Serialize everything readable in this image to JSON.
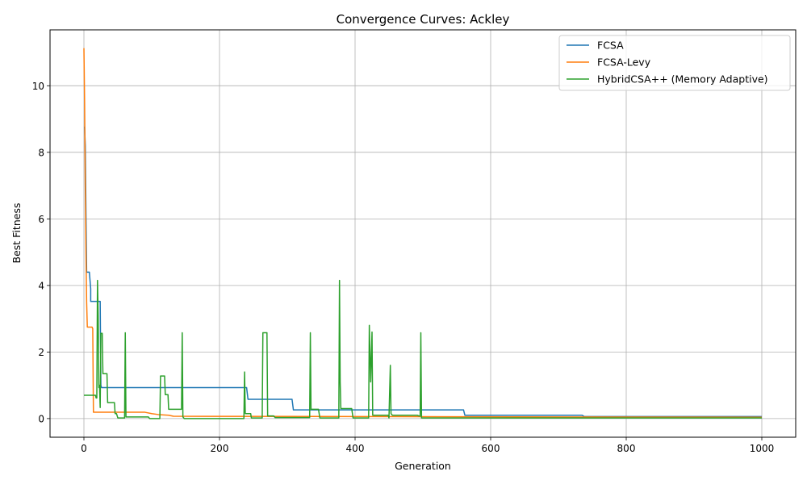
{
  "chart_data": {
    "type": "line",
    "title": "Convergence Curves: Ackley",
    "xlabel": "Generation",
    "ylabel": "Best Fitness",
    "xlim": [
      -50,
      1050
    ],
    "ylim": [
      -0.56,
      11.68
    ],
    "xticks": [
      0,
      200,
      400,
      600,
      800,
      1000
    ],
    "yticks": [
      0,
      2,
      4,
      6,
      8,
      10
    ],
    "grid": true,
    "legend_position": "top-right",
    "series": [
      {
        "name": "FCSA",
        "color": "#1f77b4",
        "points": [
          [
            0,
            8.75
          ],
          [
            1,
            8.75
          ],
          [
            2,
            8.2
          ],
          [
            3,
            6.2
          ],
          [
            4,
            4.4
          ],
          [
            8,
            4.4
          ],
          [
            10,
            3.9
          ],
          [
            10,
            3.52
          ],
          [
            23,
            3.52
          ],
          [
            24,
            3.52
          ],
          [
            25,
            1.0
          ],
          [
            26,
            0.93
          ],
          [
            240,
            0.93
          ],
          [
            242,
            0.58
          ],
          [
            307,
            0.58
          ],
          [
            309,
            0.26
          ],
          [
            560,
            0.26
          ],
          [
            562,
            0.1
          ],
          [
            735,
            0.1
          ],
          [
            738,
            0.06
          ],
          [
            1000,
            0.06
          ]
        ]
      },
      {
        "name": "FCSA-Levy",
        "color": "#ff7f0e",
        "points": [
          [
            0,
            11.13
          ],
          [
            1,
            9.5
          ],
          [
            2,
            7.0
          ],
          [
            3,
            5.0
          ],
          [
            4,
            3.5
          ],
          [
            5,
            2.75
          ],
          [
            12,
            2.75
          ],
          [
            13,
            2.7
          ],
          [
            14,
            0.19
          ],
          [
            90,
            0.19
          ],
          [
            100,
            0.15
          ],
          [
            110,
            0.12
          ],
          [
            125,
            0.1
          ],
          [
            132,
            0.07
          ],
          [
            1000,
            0.04
          ]
        ]
      },
      {
        "name": "HybridCSA++ (Memory Adaptive)",
        "color": "#2ca02c",
        "points": [
          [
            0,
            0.7
          ],
          [
            17,
            0.7
          ],
          [
            18,
            0.62
          ],
          [
            19,
            0.62
          ],
          [
            20,
            4.15
          ],
          [
            21,
            3.1
          ],
          [
            22,
            0.93
          ],
          [
            23,
            1.0
          ],
          [
            24,
            0.33
          ],
          [
            25,
            2.56
          ],
          [
            26,
            2.56
          ],
          [
            27,
            2.56
          ],
          [
            28,
            1.35
          ],
          [
            34,
            1.35
          ],
          [
            35,
            0.48
          ],
          [
            45,
            0.48
          ],
          [
            46,
            0.15
          ],
          [
            48,
            0.15
          ],
          [
            50,
            0.02
          ],
          [
            60,
            0.02
          ],
          [
            61,
            2.58
          ],
          [
            62,
            0.05
          ],
          [
            95,
            0.05
          ],
          [
            97,
            0.0
          ],
          [
            112,
            0.0
          ],
          [
            113,
            1.28
          ],
          [
            119,
            1.28
          ],
          [
            120,
            0.72
          ],
          [
            124,
            0.72
          ],
          [
            125,
            0.28
          ],
          [
            144,
            0.28
          ],
          [
            145,
            2.58
          ],
          [
            146,
            0.05
          ],
          [
            148,
            0.0
          ],
          [
            236,
            0.0
          ],
          [
            237,
            1.4
          ],
          [
            238,
            0.15
          ],
          [
            246,
            0.15
          ],
          [
            247,
            0.02
          ],
          [
            263,
            0.02
          ],
          [
            264,
            2.58
          ],
          [
            270,
            2.58
          ],
          [
            271,
            0.08
          ],
          [
            280,
            0.08
          ],
          [
            282,
            0.03
          ],
          [
            333,
            0.03
          ],
          [
            334,
            2.58
          ],
          [
            335,
            0.28
          ],
          [
            346,
            0.28
          ],
          [
            348,
            0.02
          ],
          [
            376,
            0.02
          ],
          [
            377,
            4.15
          ],
          [
            378,
            1.1
          ],
          [
            379,
            0.3
          ],
          [
            395,
            0.3
          ],
          [
            397,
            0.02
          ],
          [
            420,
            0.02
          ],
          [
            421,
            2.8
          ],
          [
            423,
            1.1
          ],
          [
            425,
            2.6
          ],
          [
            426,
            0.1
          ],
          [
            449,
            0.1
          ],
          [
            450,
            0.02
          ],
          [
            452,
            1.6
          ],
          [
            453,
            0.15
          ],
          [
            455,
            0.1
          ],
          [
            492,
            0.1
          ],
          [
            494,
            0.08
          ],
          [
            496,
            0.08
          ],
          [
            497,
            2.58
          ],
          [
            498,
            0.02
          ],
          [
            1000,
            0.02
          ]
        ]
      }
    ]
  }
}
